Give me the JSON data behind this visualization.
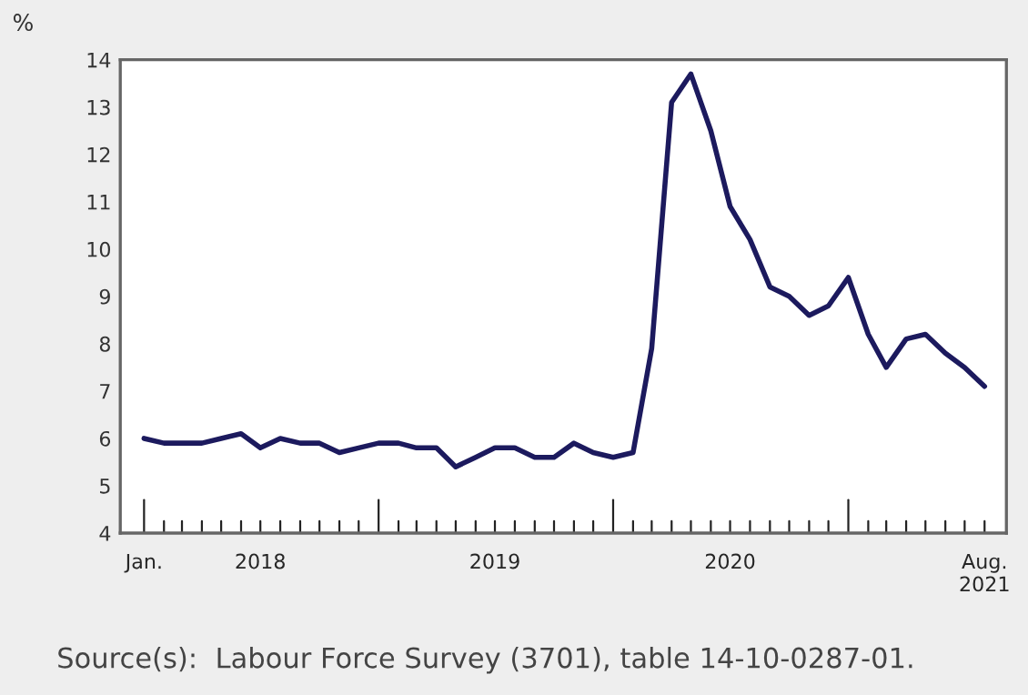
{
  "chart_data": {
    "type": "line",
    "ylabel": "%",
    "x": [
      "2018-01",
      "2018-02",
      "2018-03",
      "2018-04",
      "2018-05",
      "2018-06",
      "2018-07",
      "2018-08",
      "2018-09",
      "2018-10",
      "2018-11",
      "2018-12",
      "2019-01",
      "2019-02",
      "2019-03",
      "2019-04",
      "2019-05",
      "2019-06",
      "2019-07",
      "2019-08",
      "2019-09",
      "2019-10",
      "2019-11",
      "2019-12",
      "2020-01",
      "2020-02",
      "2020-03",
      "2020-04",
      "2020-05",
      "2020-06",
      "2020-07",
      "2020-08",
      "2020-09",
      "2020-10",
      "2020-11",
      "2020-12",
      "2021-01",
      "2021-02",
      "2021-03",
      "2021-04",
      "2021-05",
      "2021-06",
      "2021-07",
      "2021-08"
    ],
    "series": [
      {
        "color": "#1c1a5e",
        "values": [
          6.0,
          5.9,
          5.9,
          5.9,
          6.0,
          6.1,
          5.8,
          6.0,
          5.9,
          5.9,
          5.7,
          5.8,
          5.9,
          5.9,
          5.8,
          5.8,
          5.4,
          5.6,
          5.8,
          5.8,
          5.6,
          5.6,
          5.9,
          5.7,
          5.6,
          5.7,
          7.9,
          13.1,
          13.7,
          12.5,
          10.9,
          10.2,
          9.2,
          9.0,
          8.6,
          8.8,
          9.4,
          8.2,
          7.5,
          8.1,
          8.2,
          7.8,
          7.5,
          7.1
        ]
      }
    ],
    "xlim": [
      "2017-11-25",
      "2021-09-04"
    ],
    "xticks": [
      {
        "value": "2018-01",
        "label": "Jan."
      },
      {
        "value": "2018-07",
        "label": "2018"
      },
      {
        "value": "2019-07",
        "label": "2019"
      },
      {
        "value": "2020-07",
        "label": "2020"
      },
      {
        "value": "2021-08",
        "label": "Aug.\n2021"
      }
    ],
    "ylim": [
      4,
      14
    ],
    "yticks": [
      4,
      5,
      6,
      7,
      8,
      9,
      10,
      11,
      12,
      13,
      14
    ],
    "grid": false,
    "legend": false,
    "marker": "none",
    "line_style": "solid",
    "annotations": [
      "Source(s):  Labour Force Survey (3701), table 14-10-0287-01."
    ]
  }
}
